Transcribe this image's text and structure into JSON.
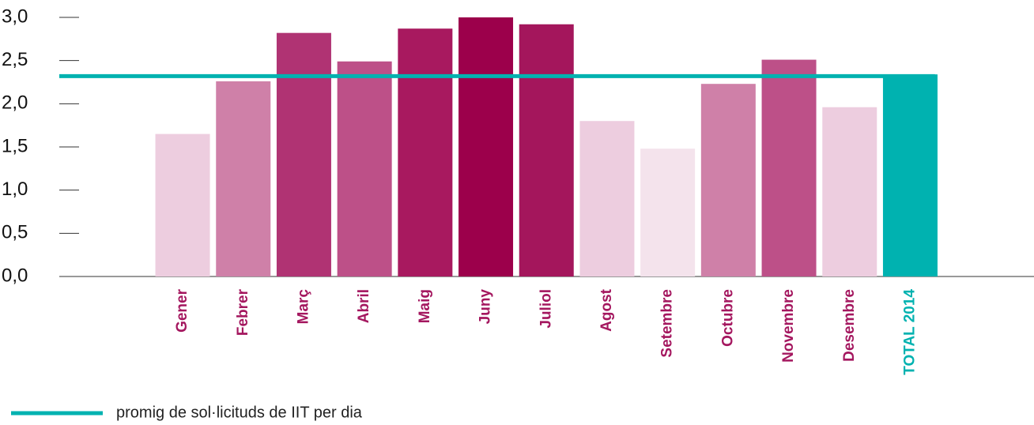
{
  "chart_data": {
    "type": "bar",
    "categories": [
      "Gener",
      "Febrer",
      "Març",
      "Abril",
      "Maig",
      "Juny",
      "Juliol",
      "Agost",
      "Setembre",
      "Octubre",
      "Novembre",
      "Desembre",
      "TOTAL 2014"
    ],
    "values": [
      1.65,
      2.26,
      2.82,
      2.49,
      2.87,
      3.0,
      2.92,
      1.8,
      1.48,
      2.23,
      2.51,
      1.96,
      2.34
    ],
    "colors": [
      "#edcddf",
      "#cf80a8",
      "#b03373",
      "#bd5088",
      "#a8195f",
      "#9c004b",
      "#a4165c",
      "#edcddf",
      "#f4e3ec",
      "#cf80a8",
      "#bd5088",
      "#edcddf",
      "#00b2b0"
    ],
    "label_colors": [
      "#a4175f",
      "#a4175f",
      "#a4175f",
      "#a4175f",
      "#a4175f",
      "#a4175f",
      "#a4175f",
      "#a4175f",
      "#a4175f",
      "#a4175f",
      "#a4175f",
      "#a4175f",
      "#00b2b0"
    ],
    "ylim": [
      0,
      3
    ],
    "yticks": [
      {
        "value": 0,
        "label": "0,0"
      },
      {
        "value": 0.5,
        "label": "0,5"
      },
      {
        "value": 1,
        "label": "1,0"
      },
      {
        "value": 1.5,
        "label": "1,5"
      },
      {
        "value": 2,
        "label": "2,0"
      },
      {
        "value": 2.5,
        "label": "2,5"
      },
      {
        "value": 3,
        "label": "3,0"
      }
    ],
    "reference_line": {
      "name": "promig de sol·licituds de IIT per dia",
      "value": 2.32,
      "color": "#00b2b0"
    }
  }
}
